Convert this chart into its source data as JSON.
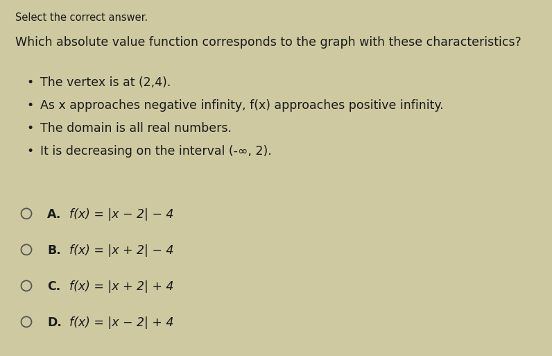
{
  "background_color": "#cec9a0",
  "header": "Select the correct answer.",
  "question": "Which absolute value function corresponds to the graph with these characteristics?",
  "bullets": [
    "The vertex is at (2,4).",
    "As x approaches negative infinity, f(x) approaches positive infinity.",
    "The domain is all real numbers.",
    "It is decreasing on the interval (-∞, 2)."
  ],
  "options": [
    {
      "label": "A.",
      "formula": "f(x) = |x − 2| − 4"
    },
    {
      "label": "B.",
      "formula": "f(x) = |x + 2| − 4"
    },
    {
      "label": "C.",
      "formula": "f(x) = |x + 2| + 4"
    },
    {
      "label": "D.",
      "formula": "f(x) = |x − 2| + 4"
    }
  ],
  "header_fontsize": 10.5,
  "question_fontsize": 12.5,
  "bullet_fontsize": 12.5,
  "option_label_fontsize": 12.5,
  "option_formula_fontsize": 12.5,
  "text_color": "#1a1a1a",
  "circle_color": "#555555"
}
